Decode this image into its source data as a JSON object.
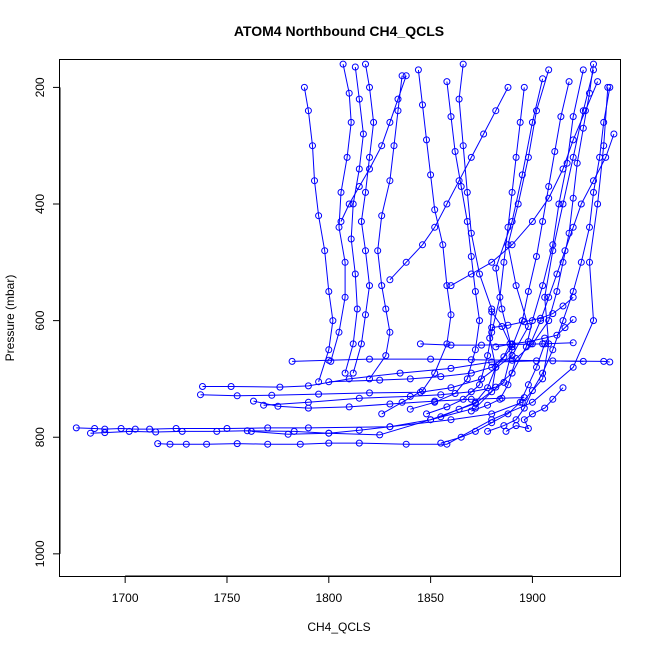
{
  "chart_data": {
    "type": "line+scatter",
    "title": "ATOM4 Northbound CH4_QCLS",
    "xlabel": "CH4_QCLS",
    "ylabel": "Pressure (mbar)",
    "xlim": [
      1668,
      1943
    ],
    "ylim_top_bottom": [
      153,
      1038
    ],
    "y_reversed": true,
    "x_ticks": [
      1700,
      1750,
      1800,
      1850,
      1900
    ],
    "y_ticks": [
      200,
      400,
      600,
      800,
      1000
    ],
    "marker": "open-circle",
    "color": "#0000ff",
    "grid": false,
    "legend": "none",
    "profiles": [
      [
        [
          1676,
          784
        ],
        [
          1685,
          785
        ],
        [
          1690,
          786
        ],
        [
          1698,
          785
        ],
        [
          1705,
          786
        ],
        [
          1712,
          786
        ],
        [
          1725,
          785
        ],
        [
          1750,
          785
        ],
        [
          1770,
          784
        ],
        [
          1790,
          784
        ],
        [
          1830,
          782
        ],
        [
          1860,
          770
        ],
        [
          1880,
          760
        ],
        [
          1895,
          740
        ],
        [
          1905,
          700
        ],
        [
          1908,
          640
        ],
        [
          1906,
          560
        ],
        [
          1910,
          480
        ],
        [
          1915,
          400
        ],
        [
          1920,
          320
        ],
        [
          1925,
          240
        ],
        [
          1930,
          170
        ]
      ],
      [
        [
          1683,
          793
        ],
        [
          1690,
          792
        ],
        [
          1702,
          790
        ],
        [
          1715,
          791
        ],
        [
          1728,
          790
        ],
        [
          1745,
          790
        ],
        [
          1760,
          789
        ],
        [
          1783,
          790
        ],
        [
          1800,
          793
        ],
        [
          1825,
          796
        ],
        [
          1850,
          770
        ],
        [
          1872,
          742
        ],
        [
          1886,
          706
        ],
        [
          1890,
          650
        ],
        [
          1885,
          580
        ],
        [
          1882,
          510
        ],
        [
          1890,
          430
        ],
        [
          1895,
          350
        ],
        [
          1900,
          260
        ],
        [
          1905,
          185
        ]
      ],
      [
        [
          1716,
          811
        ],
        [
          1722,
          812
        ],
        [
          1730,
          812
        ],
        [
          1740,
          812
        ],
        [
          1755,
          811
        ],
        [
          1770,
          812
        ],
        [
          1786,
          812
        ],
        [
          1800,
          810
        ],
        [
          1815,
          810
        ],
        [
          1838,
          812
        ],
        [
          1858,
          812
        ],
        [
          1880,
          770
        ],
        [
          1900,
          740
        ],
        [
          1920,
          680
        ],
        [
          1930,
          600
        ],
        [
          1928,
          500
        ],
        [
          1932,
          400
        ],
        [
          1935,
          300
        ],
        [
          1937,
          200
        ]
      ],
      [
        [
          1738,
          713
        ],
        [
          1752,
          713
        ],
        [
          1776,
          714
        ],
        [
          1790,
          712
        ],
        [
          1810,
          700
        ],
        [
          1835,
          690
        ],
        [
          1860,
          682
        ],
        [
          1880,
          671
        ],
        [
          1902,
          669
        ],
        [
          1935,
          670
        ],
        [
          1938,
          671
        ]
      ],
      [
        [
          1737,
          727
        ],
        [
          1755,
          729
        ],
        [
          1772,
          728
        ],
        [
          1795,
          726
        ],
        [
          1820,
          724
        ],
        [
          1845,
          723
        ],
        [
          1860,
          715
        ],
        [
          1875,
          700
        ],
        [
          1890,
          660
        ],
        [
          1898,
          610
        ],
        [
          1892,
          540
        ],
        [
          1888,
          470
        ],
        [
          1893,
          400
        ],
        [
          1898,
          320
        ],
        [
          1902,
          240
        ],
        [
          1908,
          170
        ]
      ],
      [
        [
          1763,
          738
        ],
        [
          1775,
          747
        ],
        [
          1790,
          750
        ],
        [
          1810,
          748
        ],
        [
          1830,
          743
        ],
        [
          1852,
          738
        ],
        [
          1870,
          735
        ],
        [
          1885,
          733
        ],
        [
          1896,
          732
        ]
      ],
      [
        [
          1762,
          790
        ],
        [
          1780,
          795
        ],
        [
          1800,
          793
        ],
        [
          1815,
          788
        ],
        [
          1830,
          782
        ],
        [
          1850,
          770
        ],
        [
          1872,
          750
        ],
        [
          1880,
          722
        ],
        [
          1882,
          680
        ],
        [
          1879,
          630
        ],
        [
          1880,
          580
        ],
        [
          1874,
          520
        ],
        [
          1870,
          450
        ],
        [
          1868,
          380
        ],
        [
          1866,
          300
        ],
        [
          1864,
          220
        ],
        [
          1866,
          160
        ]
      ],
      [
        [
          1768,
          745
        ],
        [
          1790,
          740
        ],
        [
          1815,
          733
        ],
        [
          1840,
          730
        ],
        [
          1855,
          727
        ],
        [
          1870,
          722
        ],
        [
          1882,
          714
        ],
        [
          1890,
          690
        ],
        [
          1897,
          645
        ],
        [
          1900,
          600
        ],
        [
          1905,
          540
        ],
        [
          1910,
          470
        ],
        [
          1913,
          400
        ],
        [
          1917,
          330
        ],
        [
          1920,
          250
        ],
        [
          1925,
          170
        ]
      ],
      [
        [
          1782,
          670
        ],
        [
          1800,
          668
        ],
        [
          1820,
          666
        ],
        [
          1850,
          666
        ],
        [
          1870,
          667
        ],
        [
          1890,
          668
        ],
        [
          1910,
          669
        ],
        [
          1925,
          670
        ]
      ],
      [
        [
          1800,
          705
        ],
        [
          1825,
          702
        ],
        [
          1840,
          700
        ],
        [
          1855,
          696
        ],
        [
          1870,
          690
        ],
        [
          1880,
          680
        ],
        [
          1886,
          662
        ],
        [
          1889,
          640
        ],
        [
          1885,
          610
        ],
        [
          1880,
          585
        ]
      ],
      [
        [
          1795,
          705
        ],
        [
          1800,
          650
        ],
        [
          1802,
          600
        ],
        [
          1800,
          550
        ],
        [
          1798,
          480
        ],
        [
          1795,
          420
        ],
        [
          1793,
          360
        ],
        [
          1792,
          300
        ],
        [
          1790,
          240
        ],
        [
          1788,
          200
        ]
      ],
      [
        [
          1801,
          670
        ],
        [
          1805,
          620
        ],
        [
          1808,
          560
        ],
        [
          1808,
          500
        ],
        [
          1805,
          440
        ],
        [
          1806,
          380
        ],
        [
          1809,
          320
        ],
        [
          1811,
          260
        ],
        [
          1810,
          210
        ],
        [
          1807,
          160
        ]
      ],
      [
        [
          1808,
          690
        ],
        [
          1812,
          640
        ],
        [
          1814,
          580
        ],
        [
          1813,
          520
        ],
        [
          1811,
          460
        ],
        [
          1812,
          400
        ],
        [
          1815,
          340
        ],
        [
          1817,
          280
        ],
        [
          1815,
          220
        ],
        [
          1813,
          165
        ]
      ],
      [
        [
          1812,
          690
        ],
        [
          1816,
          640
        ],
        [
          1818,
          590
        ],
        [
          1820,
          540
        ],
        [
          1818,
          480
        ],
        [
          1816,
          430
        ],
        [
          1818,
          380
        ],
        [
          1820,
          320
        ],
        [
          1822,
          260
        ],
        [
          1820,
          200
        ],
        [
          1818,
          160
        ]
      ],
      [
        [
          1820,
          700
        ],
        [
          1828,
          660
        ],
        [
          1830,
          620
        ],
        [
          1828,
          580
        ],
        [
          1826,
          540
        ],
        [
          1824,
          480
        ],
        [
          1826,
          420
        ],
        [
          1830,
          360
        ],
        [
          1832,
          300
        ],
        [
          1834,
          240
        ],
        [
          1836,
          180
        ]
      ],
      [
        [
          1826,
          760
        ],
        [
          1836,
          740
        ],
        [
          1846,
          720
        ],
        [
          1852,
          690
        ],
        [
          1858,
          640
        ],
        [
          1860,
          590
        ],
        [
          1858,
          540
        ],
        [
          1856,
          470
        ],
        [
          1852,
          410
        ],
        [
          1850,
          350
        ],
        [
          1848,
          290
        ],
        [
          1846,
          230
        ],
        [
          1844,
          170
        ]
      ],
      [
        [
          1840,
          752
        ],
        [
          1852,
          740
        ],
        [
          1862,
          725
        ],
        [
          1868,
          700
        ],
        [
          1872,
          650
        ],
        [
          1874,
          600
        ],
        [
          1872,
          550
        ],
        [
          1870,
          490
        ],
        [
          1868,
          430
        ],
        [
          1865,
          370
        ],
        [
          1862,
          310
        ],
        [
          1860,
          250
        ],
        [
          1858,
          190
        ]
      ],
      [
        [
          1848,
          760
        ],
        [
          1858,
          748
        ],
        [
          1866,
          735
        ],
        [
          1874,
          710
        ],
        [
          1878,
          660
        ],
        [
          1880,
          620
        ],
        [
          1884,
          560
        ],
        [
          1886,
          500
        ],
        [
          1888,
          440
        ],
        [
          1890,
          380
        ],
        [
          1892,
          320
        ],
        [
          1894,
          260
        ],
        [
          1896,
          200
        ]
      ],
      [
        [
          1855,
          765
        ],
        [
          1864,
          752
        ],
        [
          1872,
          740
        ],
        [
          1878,
          715
        ],
        [
          1882,
          680
        ],
        [
          1890,
          645
        ],
        [
          1895,
          600
        ],
        [
          1898,
          550
        ],
        [
          1902,
          490
        ],
        [
          1905,
          430
        ],
        [
          1908,
          370
        ],
        [
          1911,
          310
        ],
        [
          1914,
          250
        ],
        [
          1918,
          190
        ]
      ],
      [
        [
          1870,
          755
        ],
        [
          1878,
          745
        ],
        [
          1884,
          735
        ],
        [
          1888,
          710
        ],
        [
          1892,
          665
        ],
        [
          1900,
          640
        ],
        [
          1908,
          600
        ],
        [
          1912,
          550
        ],
        [
          1915,
          500
        ],
        [
          1918,
          450
        ],
        [
          1920,
          390
        ],
        [
          1922,
          330
        ],
        [
          1925,
          270
        ],
        [
          1928,
          210
        ],
        [
          1930,
          160
        ]
      ],
      [
        [
          1878,
          790
        ],
        [
          1886,
          780
        ],
        [
          1892,
          770
        ],
        [
          1896,
          750
        ],
        [
          1900,
          720
        ],
        [
          1905,
          690
        ],
        [
          1910,
          650
        ],
        [
          1915,
          600
        ],
        [
          1920,
          550
        ],
        [
          1924,
          500
        ],
        [
          1928,
          440
        ],
        [
          1930,
          380
        ],
        [
          1933,
          320
        ],
        [
          1935,
          260
        ],
        [
          1938,
          200
        ]
      ],
      [
        [
          1855,
          810
        ],
        [
          1865,
          800
        ],
        [
          1872,
          790
        ],
        [
          1880,
          775
        ],
        [
          1888,
          760
        ],
        [
          1894,
          740
        ],
        [
          1898,
          710
        ],
        [
          1902,
          680
        ],
        [
          1906,
          640
        ]
      ],
      [
        [
          1887,
          790
        ],
        [
          1892,
          780
        ],
        [
          1898,
          785
        ],
        [
          1896,
          770
        ],
        [
          1900,
          760
        ],
        [
          1906,
          750
        ],
        [
          1910,
          735
        ],
        [
          1915,
          715
        ]
      ],
      [
        [
          1882,
          645
        ],
        [
          1890,
          640
        ],
        [
          1898,
          636
        ],
        [
          1906,
          630
        ],
        [
          1912,
          625
        ],
        [
          1916,
          612
        ],
        [
          1920,
          598
        ]
      ],
      [
        [
          1880,
          612
        ],
        [
          1888,
          608
        ],
        [
          1896,
          602
        ],
        [
          1904,
          596
        ],
        [
          1910,
          588
        ],
        [
          1915,
          575
        ],
        [
          1920,
          560
        ]
      ],
      [
        [
          1845,
          640
        ],
        [
          1860,
          642
        ],
        [
          1875,
          642
        ],
        [
          1890,
          641
        ],
        [
          1905,
          640
        ],
        [
          1920,
          638
        ]
      ],
      [
        [
          1860,
          540
        ],
        [
          1870,
          520
        ],
        [
          1880,
          500
        ],
        [
          1890,
          470
        ],
        [
          1900,
          430
        ],
        [
          1908,
          390
        ],
        [
          1915,
          340
        ],
        [
          1920,
          290
        ],
        [
          1926,
          240
        ],
        [
          1932,
          190
        ]
      ],
      [
        [
          1830,
          530
        ],
        [
          1838,
          500
        ],
        [
          1846,
          470
        ],
        [
          1852,
          440
        ],
        [
          1858,
          400
        ],
        [
          1864,
          360
        ],
        [
          1870,
          320
        ],
        [
          1876,
          280
        ],
        [
          1882,
          240
        ],
        [
          1888,
          200
        ]
      ],
      [
        [
          1806,
          430
        ],
        [
          1810,
          400
        ],
        [
          1815,
          370
        ],
        [
          1820,
          340
        ],
        [
          1826,
          300
        ],
        [
          1830,
          260
        ],
        [
          1834,
          220
        ],
        [
          1838,
          180
        ]
      ],
      [
        [
          1899,
          640
        ],
        [
          1904,
          600
        ],
        [
          1908,
          560
        ],
        [
          1912,
          520
        ],
        [
          1916,
          480
        ],
        [
          1920,
          440
        ],
        [
          1924,
          400
        ],
        [
          1930,
          360
        ],
        [
          1936,
          320
        ],
        [
          1940,
          280
        ]
      ]
    ]
  }
}
